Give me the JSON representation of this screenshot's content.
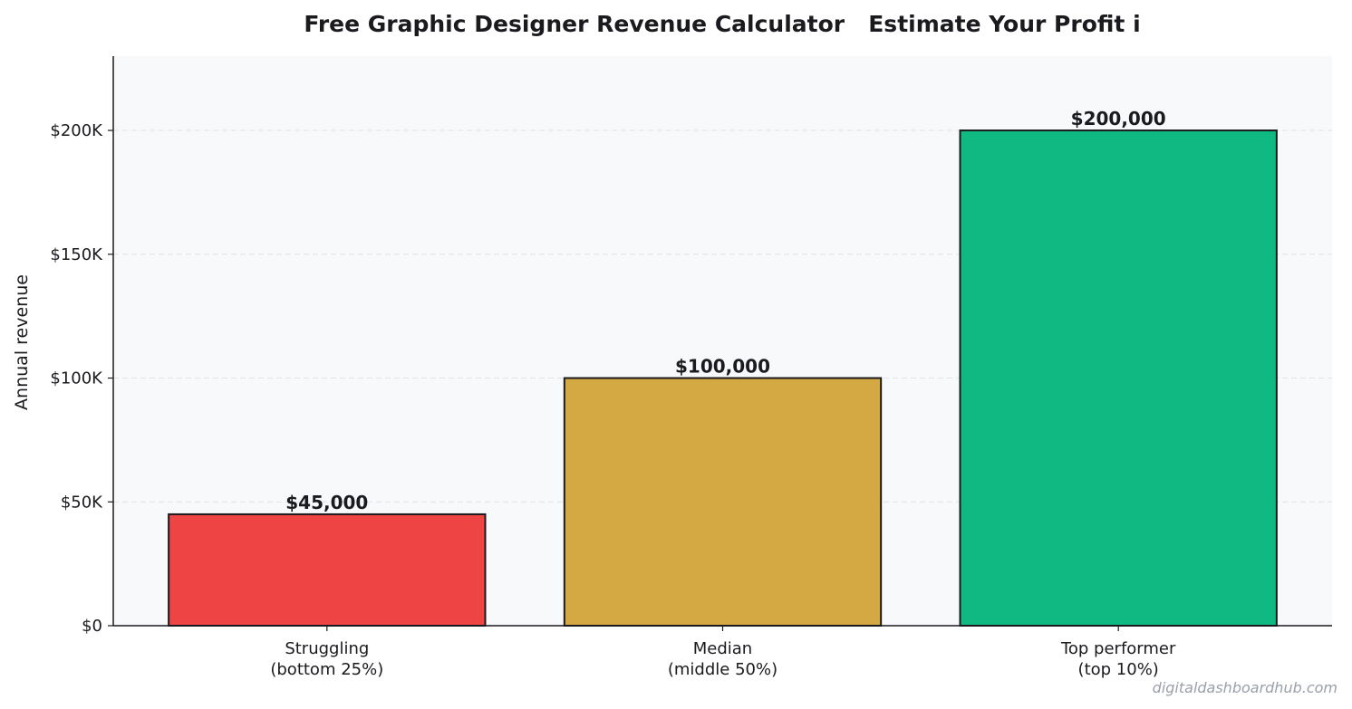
{
  "chart_data": {
    "type": "bar",
    "title": "Free Graphic Designer Revenue Calculator   Estimate Your Profit i",
    "xlabel": "",
    "ylabel": "Annual revenue",
    "categories": [
      [
        "Struggling",
        "(bottom 25%)"
      ],
      [
        "Median",
        "(middle 50%)"
      ],
      [
        "Top performer",
        "(top 10%)"
      ]
    ],
    "values": [
      45000,
      100000,
      200000
    ],
    "data_labels": [
      "$45,000",
      "$100,000",
      "$200,000"
    ],
    "colors": [
      "#ef4444",
      "#d4a843",
      "#10b981"
    ],
    "ylim": [
      0,
      230000
    ],
    "yticks": [
      0,
      50000,
      100000,
      150000,
      200000
    ],
    "ytick_labels": [
      "$0",
      "$50K",
      "$100K",
      "$150K",
      "$200K"
    ],
    "grid": "horizontal dashed",
    "background": "#f8f9fb"
  },
  "watermark": "digitaldashboardhub.com"
}
